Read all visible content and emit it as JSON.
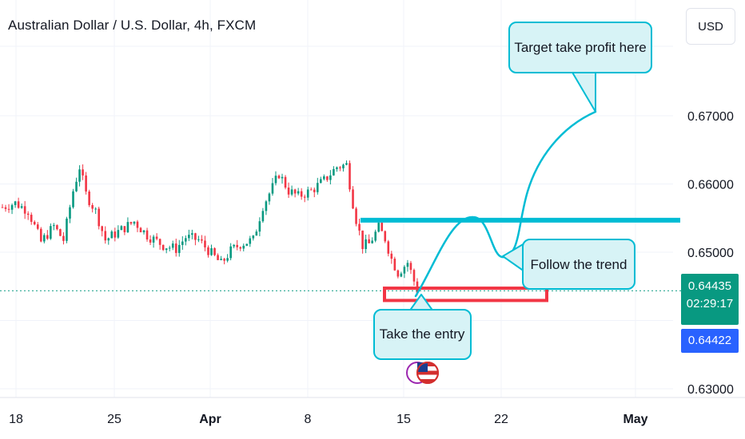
{
  "header": {
    "title": "Australian Dollar / U.S. Dollar, 4h, FXCM",
    "currency": "USD"
  },
  "price_axis": {
    "last_price": "0.64435",
    "countdown": "02:29:17",
    "bid_price": "0.64422"
  },
  "colors": {
    "up": "#089981",
    "down": "#f23645",
    "annotation": "#00bcd4",
    "callout_fill": "#d7f3f6",
    "support": "#f23645",
    "grid": "#f0f3fa",
    "axis_text": "#131722"
  },
  "chart_data": {
    "type": "candlestick",
    "symbol": "AUDUSD",
    "timeframe": "4h",
    "x_ticks": [
      "18",
      "25",
      "Apr",
      "8",
      "15",
      "22",
      "May"
    ],
    "y_ticks": [
      "0.67000",
      "0.66000",
      "0.65000",
      "0.63000"
    ],
    "ylim": [
      0.629,
      0.6748
    ],
    "grid": true,
    "close_path": [
      {
        "x": 0,
        "y": 0.6566
      },
      {
        "x": 4,
        "y": 0.6572
      },
      {
        "x": 8,
        "y": 0.6561
      },
      {
        "x": 12,
        "y": 0.6515
      },
      {
        "x": 16,
        "y": 0.6538
      },
      {
        "x": 19,
        "y": 0.6518
      },
      {
        "x": 22,
        "y": 0.659
      },
      {
        "x": 24,
        "y": 0.6625
      },
      {
        "x": 26,
        "y": 0.6585
      },
      {
        "x": 29,
        "y": 0.656
      },
      {
        "x": 32,
        "y": 0.6518
      },
      {
        "x": 36,
        "y": 0.653
      },
      {
        "x": 41,
        "y": 0.6545
      },
      {
        "x": 45,
        "y": 0.6525
      },
      {
        "x": 50,
        "y": 0.651
      },
      {
        "x": 54,
        "y": 0.6505
      },
      {
        "x": 57,
        "y": 0.6522
      },
      {
        "x": 61,
        "y": 0.6518
      },
      {
        "x": 65,
        "y": 0.6498
      },
      {
        "x": 68,
        "y": 0.6483
      },
      {
        "x": 71,
        "y": 0.6502
      },
      {
        "x": 74,
        "y": 0.6512
      },
      {
        "x": 78,
        "y": 0.6518
      },
      {
        "x": 81,
        "y": 0.6568
      },
      {
        "x": 84,
        "y": 0.6595
      },
      {
        "x": 86,
        "y": 0.6615
      },
      {
        "x": 89,
        "y": 0.659
      },
      {
        "x": 92,
        "y": 0.6582
      },
      {
        "x": 96,
        "y": 0.659
      },
      {
        "x": 100,
        "y": 0.6605
      },
      {
        "x": 104,
        "y": 0.6625
      },
      {
        "x": 107,
        "y": 0.6628
      },
      {
        "x": 109,
        "y": 0.6572
      },
      {
        "x": 110,
        "y": 0.6548
      },
      {
        "x": 112,
        "y": 0.651
      },
      {
        "x": 114,
        "y": 0.6512
      },
      {
        "x": 117,
        "y": 0.6536
      },
      {
        "x": 119,
        "y": 0.652
      },
      {
        "x": 121,
        "y": 0.649
      },
      {
        "x": 123,
        "y": 0.647
      },
      {
        "x": 126,
        "y": 0.6485
      },
      {
        "x": 129,
        "y": 0.6444
      }
    ],
    "resistance_level": 0.6547,
    "support_zone": [
      0.6434,
      0.6445
    ],
    "annotations": [
      "Target take profit here",
      "Follow the trend",
      "Take the entry"
    ]
  }
}
